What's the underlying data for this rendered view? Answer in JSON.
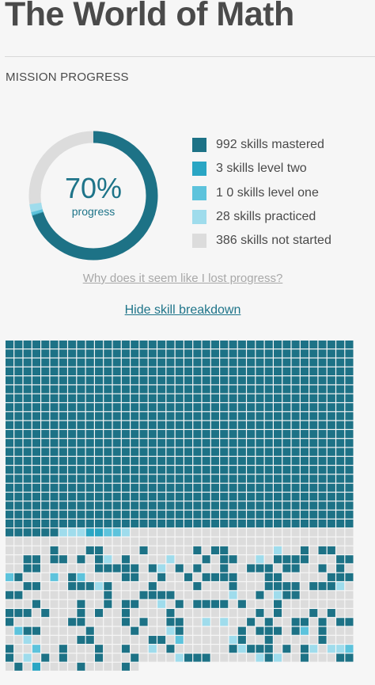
{
  "page": {
    "title": "The World of Math"
  },
  "mission": {
    "section_title": "MISSION PROGRESS",
    "progress": {
      "percent_label": "70%",
      "caption": "progress",
      "value": 0.7
    },
    "legend": [
      {
        "key": "mastered",
        "label": "992 skills mastered",
        "count": 992,
        "color": "#1d7286"
      },
      {
        "key": "level_two",
        "label": "3 skills level two",
        "count": 3,
        "color": "#2aa6c4"
      },
      {
        "key": "level_one",
        "label": "1 0 skills level one",
        "count": 10,
        "color": "#5dc3dc"
      },
      {
        "key": "practiced",
        "label": "28 skills practiced",
        "count": 28,
        "color": "#9fdcec"
      },
      {
        "key": "not_started",
        "label": "386 skills not started",
        "count": 386,
        "color": "#dcdcdc"
      }
    ],
    "lost_progress_link": "Why does it seem like I lost progress?",
    "toggle_breakdown_link": "Hide skill breakdown"
  },
  "colors": {
    "accent": "#1e7489",
    "background": "#f6f6f6",
    "track": "#dcdcdc"
  },
  "skill_grid": {
    "columns": 39,
    "total_skills": 1419,
    "order_note": "mastery states by skill, row-major"
  }
}
